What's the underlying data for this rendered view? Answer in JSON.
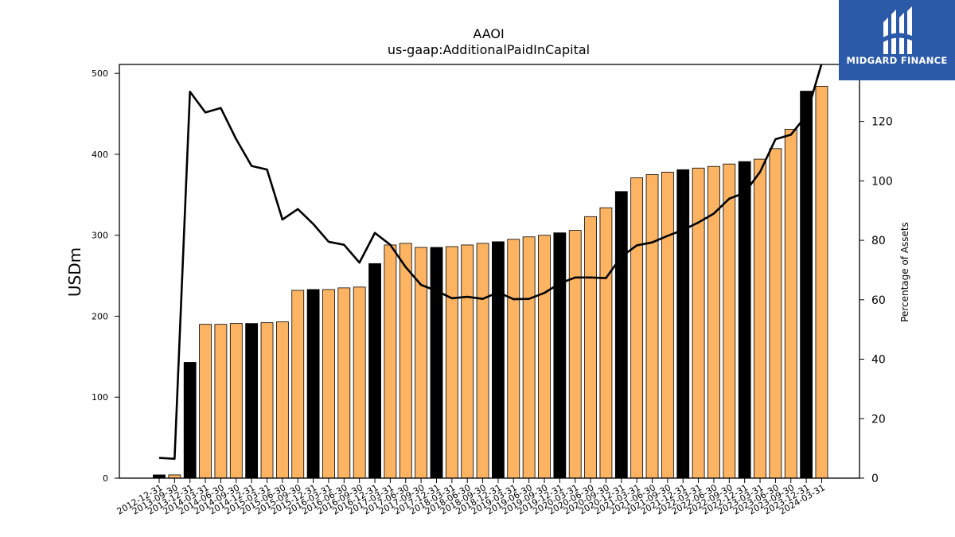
{
  "brand": {
    "name": "MIDGARD FINANCE",
    "color": "#2b5aa8"
  },
  "chart_data": {
    "type": "bar",
    "title": "AAOI",
    "subtitle": "us-gaap:AdditionalPaidInCapital",
    "ylabel": "USDm",
    "y2label": "Percentage of Assets",
    "ylim": [
      0,
      510
    ],
    "y2lim": [
      0,
      140
    ],
    "yticks": [
      0,
      100,
      200,
      300,
      400,
      500
    ],
    "y2ticks": [
      0,
      20,
      40,
      60,
      80,
      100,
      120
    ],
    "grid": false,
    "colors": {
      "annual": "#000000",
      "quarterly": "#fdb462",
      "line": "#000000"
    },
    "categories": [
      "2012-12-31",
      "2013-09-30",
      "2013-12-31",
      "2014-03-31",
      "2014-06-30",
      "2014-09-30",
      "2014-12-31",
      "2015-03-31",
      "2015-06-30",
      "2015-09-30",
      "2015-12-31",
      "2016-03-31",
      "2016-06-30",
      "2016-09-30",
      "2016-12-31",
      "2017-03-31",
      "2017-06-30",
      "2017-09-30",
      "2017-12-31",
      "2018-03-31",
      "2018-06-30",
      "2018-09-30",
      "2018-12-31",
      "2019-03-31",
      "2019-06-30",
      "2019-09-30",
      "2019-12-31",
      "2020-03-31",
      "2020-06-30",
      "2020-09-30",
      "2020-12-31",
      "2021-03-31",
      "2021-06-30",
      "2021-09-30",
      "2021-12-31",
      "2022-03-31",
      "2022-06-30",
      "2022-09-30",
      "2022-12-31",
      "2023-03-31",
      "2023-06-30",
      "2023-09-30",
      "2023-12-31",
      "2024-03-31"
    ],
    "series": [
      {
        "kind": "bar",
        "values": [
          4,
          4,
          143,
          190,
          190,
          191,
          191,
          192,
          193,
          232,
          233,
          233,
          235,
          236,
          265,
          288,
          290,
          285,
          285,
          286,
          288,
          290,
          292,
          295,
          298,
          300,
          303,
          306,
          323,
          334,
          354,
          371,
          375,
          378,
          381,
          383,
          385,
          388,
          391,
          394,
          407,
          431,
          478,
          484
        ],
        "annual": [
          true,
          false,
          true,
          false,
          false,
          false,
          true,
          false,
          false,
          false,
          true,
          false,
          false,
          false,
          true,
          false,
          false,
          false,
          true,
          false,
          false,
          false,
          true,
          false,
          false,
          false,
          true,
          false,
          false,
          false,
          true,
          false,
          false,
          false,
          true,
          false,
          false,
          false,
          true,
          false,
          false,
          false,
          true,
          false
        ]
      },
      {
        "kind": "line",
        "axis": "right",
        "values": [
          6.8,
          6.5,
          130,
          123,
          124.5,
          114,
          105,
          103.8,
          87,
          90.5,
          85.5,
          79.5,
          78.5,
          72.5,
          82.5,
          78.5,
          71,
          65,
          63,
          60.5,
          61,
          60.3,
          62.5,
          60.2,
          60.3,
          62.3,
          65.5,
          67.5,
          67.5,
          67.3,
          74.5,
          78.3,
          79.3,
          81.5,
          83.5,
          86,
          89,
          94,
          96,
          103,
          114,
          115.5,
          122,
          139.5
        ]
      }
    ]
  }
}
